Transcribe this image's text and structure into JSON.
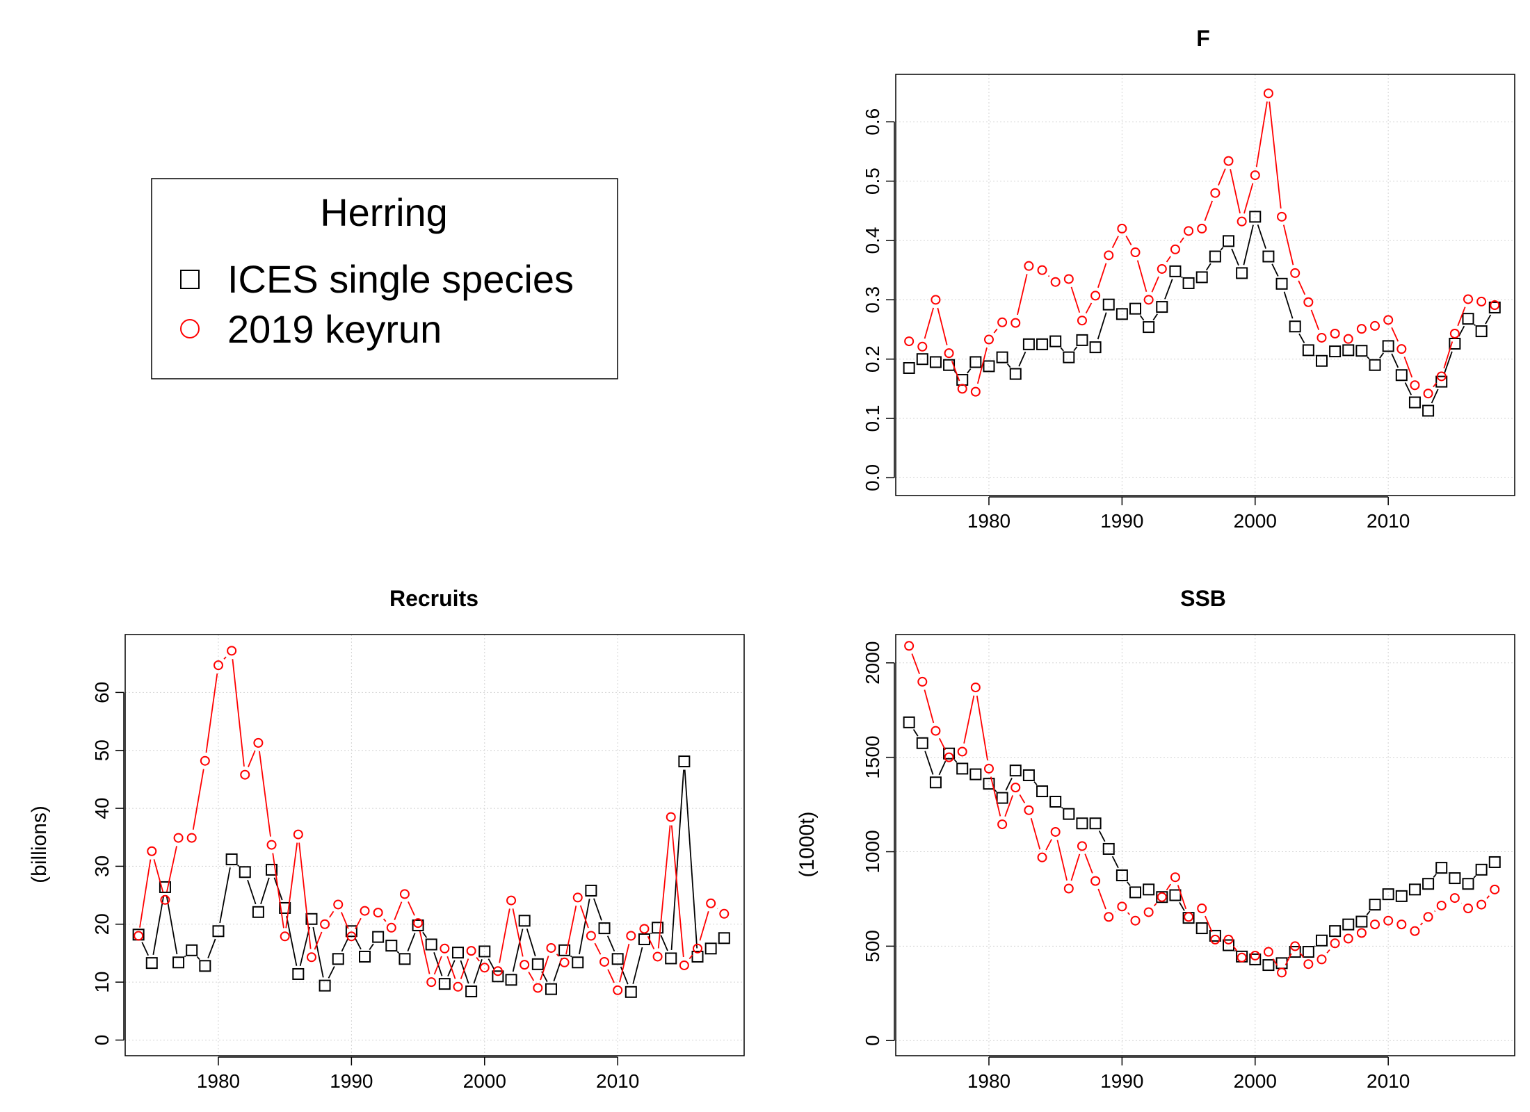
{
  "legend": {
    "title": "Herring",
    "entries": [
      {
        "label": "ICES single species",
        "marker": "square",
        "color": "#000000"
      },
      {
        "label": "2019 keyrun",
        "marker": "circle",
        "color": "#ff0000"
      }
    ]
  },
  "chart_data": [
    {
      "type": "line",
      "title": "F",
      "xlabel": "",
      "ylabel": "",
      "xlim": [
        1973,
        2019.5
      ],
      "ylim": [
        -0.03,
        0.68
      ],
      "xticks": [
        1980,
        1990,
        2000,
        2010
      ],
      "yticks": [
        0.0,
        0.1,
        0.2,
        0.3,
        0.4,
        0.5,
        0.6
      ],
      "ytick_labels": [
        "0.0",
        "0.1",
        "0.2",
        "0.3",
        "0.4",
        "0.5",
        "0.6"
      ],
      "grid": true,
      "x": [
        1974,
        1975,
        1976,
        1977,
        1978,
        1979,
        1980,
        1981,
        1982,
        1983,
        1984,
        1985,
        1986,
        1987,
        1988,
        1989,
        1990,
        1991,
        1992,
        1993,
        1994,
        1995,
        1996,
        1997,
        1998,
        1999,
        2000,
        2001,
        2002,
        2003,
        2004,
        2005,
        2006,
        2007,
        2008,
        2009,
        2010,
        2011,
        2012,
        2013,
        2014,
        2015,
        2016,
        2017,
        2018
      ],
      "series": [
        {
          "name": "ICES single species",
          "color": "#000000",
          "marker": "square",
          "values": [
            0.185,
            0.2,
            0.195,
            0.19,
            0.165,
            0.195,
            0.188,
            0.203,
            0.175,
            0.225,
            0.225,
            0.23,
            0.203,
            0.232,
            0.22,
            0.292,
            0.276,
            0.285,
            0.254,
            0.288,
            0.348,
            0.328,
            0.338,
            0.373,
            0.399,
            0.345,
            0.44,
            0.373,
            0.327,
            0.255,
            0.215,
            0.197,
            0.213,
            0.215,
            0.214,
            0.19,
            0.222,
            0.173,
            0.127,
            0.113,
            0.162,
            0.226,
            0.268,
            0.247,
            0.287
          ]
        },
        {
          "name": "2019 keyrun",
          "color": "#ff0000",
          "marker": "circle",
          "values": [
            0.23,
            0.221,
            0.3,
            0.21,
            0.15,
            0.145,
            0.233,
            0.262,
            0.261,
            0.357,
            0.35,
            0.33,
            0.335,
            0.265,
            0.307,
            0.375,
            0.42,
            0.38,
            0.3,
            0.352,
            0.385,
            0.416,
            0.42,
            0.48,
            0.534,
            0.432,
            0.51,
            0.648,
            0.44,
            0.345,
            0.296,
            0.236,
            0.243,
            0.234,
            0.251,
            0.256,
            0.266,
            0.217,
            0.156,
            0.142,
            0.171,
            0.243,
            0.301,
            0.297,
            0.291
          ]
        }
      ]
    },
    {
      "type": "line",
      "title": "Recruits",
      "xlabel": "",
      "ylabel": "(billions)",
      "xlim": [
        1973,
        2019.5
      ],
      "ylim": [
        -2.7,
        70
      ],
      "xticks": [
        1980,
        1990,
        2000,
        2010
      ],
      "yticks": [
        0,
        10,
        20,
        30,
        40,
        50,
        60
      ],
      "ytick_labels": [
        "0",
        "10",
        "20",
        "30",
        "40",
        "50",
        "60"
      ],
      "grid": true,
      "x": [
        1974,
        1975,
        1976,
        1977,
        1978,
        1979,
        1980,
        1981,
        1982,
        1983,
        1984,
        1985,
        1986,
        1987,
        1988,
        1989,
        1990,
        1991,
        1992,
        1993,
        1994,
        1995,
        1996,
        1997,
        1998,
        1999,
        2000,
        2001,
        2002,
        2003,
        2004,
        2005,
        2006,
        2007,
        2008,
        2009,
        2010,
        2011,
        2012,
        2013,
        2014,
        2015,
        2016,
        2017,
        2018
      ],
      "series": [
        {
          "name": "ICES single species",
          "color": "#000000",
          "marker": "square",
          "values": [
            18.2,
            13.3,
            26.4,
            13.4,
            15.5,
            12.8,
            18.8,
            31.2,
            29.0,
            22.1,
            29.4,
            22.8,
            11.4,
            20.9,
            9.4,
            14.0,
            18.8,
            14.4,
            17.8,
            16.3,
            14.0,
            19.8,
            16.5,
            9.7,
            15.1,
            8.4,
            15.3,
            11.0,
            10.4,
            20.6,
            13.1,
            8.8,
            15.5,
            13.4,
            25.8,
            19.3,
            14.0,
            8.3,
            17.4,
            19.4,
            14.1,
            48.1,
            14.4,
            15.8,
            17.6
          ]
        },
        {
          "name": "2019 keyrun",
          "color": "#ff0000",
          "marker": "circle",
          "values": [
            18.0,
            32.6,
            24.2,
            34.9,
            34.9,
            48.2,
            64.7,
            67.2,
            45.8,
            51.3,
            33.7,
            17.9,
            35.5,
            14.3,
            20.0,
            23.4,
            17.9,
            22.3,
            22.0,
            19.4,
            25.2,
            20.2,
            10.0,
            15.8,
            9.2,
            15.4,
            12.5,
            11.9,
            24.1,
            13.0,
            9.0,
            15.9,
            13.4,
            24.6,
            18.0,
            13.5,
            8.6,
            18.0,
            19.2,
            14.4,
            38.5,
            12.9,
            15.8,
            23.6,
            21.8
          ]
        }
      ]
    },
    {
      "type": "line",
      "title": "SSB",
      "xlabel": "",
      "ylabel": "(1000t)",
      "xlim": [
        1973,
        2019.5
      ],
      "ylim": [
        -80,
        2150
      ],
      "xticks": [
        1980,
        1990,
        2000,
        2010
      ],
      "yticks": [
        0,
        500,
        1000,
        1500,
        2000
      ],
      "ytick_labels": [
        "0",
        "500",
        "1000",
        "1500",
        "2000"
      ],
      "grid": true,
      "x": [
        1974,
        1975,
        1976,
        1977,
        1978,
        1979,
        1980,
        1981,
        1982,
        1983,
        1984,
        1985,
        1986,
        1987,
        1988,
        1989,
        1990,
        1991,
        1992,
        1993,
        1994,
        1995,
        1996,
        1997,
        1998,
        1999,
        2000,
        2001,
        2002,
        2003,
        2004,
        2005,
        2006,
        2007,
        2008,
        2009,
        2010,
        2011,
        2012,
        2013,
        2014,
        2015,
        2016,
        2017,
        2018
      ],
      "series": [
        {
          "name": "ICES single species",
          "color": "#000000",
          "marker": "square",
          "values": [
            1685,
            1575,
            1367,
            1520,
            1440,
            1410,
            1360,
            1285,
            1430,
            1405,
            1320,
            1265,
            1200,
            1150,
            1150,
            1015,
            875,
            785,
            800,
            760,
            770,
            650,
            595,
            555,
            505,
            445,
            430,
            400,
            410,
            470,
            470,
            530,
            580,
            615,
            630,
            720,
            775,
            765,
            800,
            830,
            915,
            860,
            830,
            905,
            945
          ]
        },
        {
          "name": "2019 keyrun",
          "color": "#ff0000",
          "marker": "circle",
          "values": [
            2090,
            1900,
            1640,
            1500,
            1530,
            1870,
            1440,
            1145,
            1340,
            1220,
            970,
            1105,
            805,
            1030,
            845,
            655,
            710,
            635,
            680,
            760,
            865,
            655,
            700,
            535,
            535,
            440,
            450,
            470,
            360,
            500,
            405,
            430,
            515,
            540,
            570,
            615,
            635,
            615,
            580,
            655,
            715,
            755,
            700,
            720,
            800
          ]
        }
      ]
    }
  ]
}
